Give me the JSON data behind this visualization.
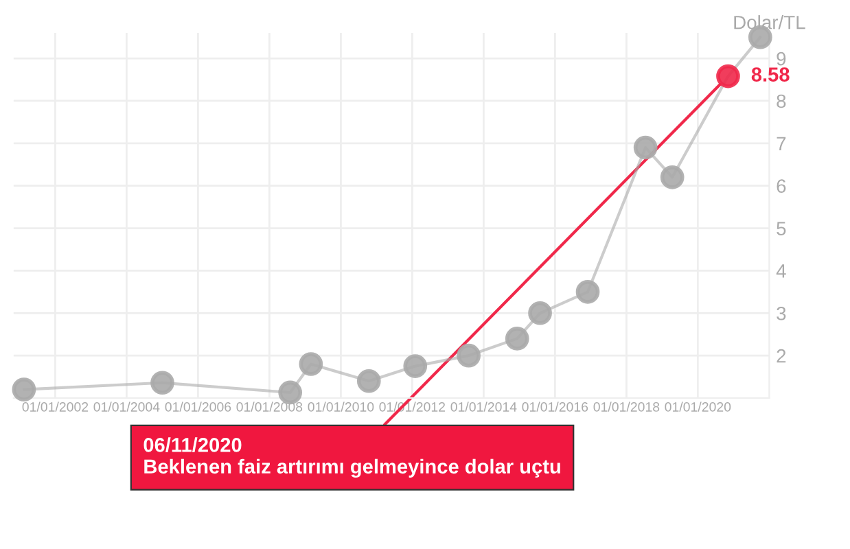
{
  "chart_data": {
    "type": "line",
    "x": [
      "2001-02-15",
      "2005-01-01",
      "2008-08-01",
      "2009-03-01",
      "2010-10-15",
      "2012-02-01",
      "2013-08-01",
      "2014-12-10",
      "2015-08-01",
      "2016-12-01",
      "2018-07-15",
      "2019-04-15",
      "2020-11-06",
      "2021-10-01"
    ],
    "series": [
      {
        "color": "#aaaaaa",
        "colors": [
          "#aaaaaa",
          "#aaaaaa",
          "#aaaaaa",
          "#aaaaaa",
          "#aaaaaa",
          "#aaaaaa",
          "#aaaaaa",
          "#aaaaaa",
          "#aaaaaa",
          "#aaaaaa",
          "#aaaaaa",
          "#aaaaaa",
          "#f0284a",
          "#aaaaaa"
        ],
        "values": [
          1.2,
          1.36,
          1.13,
          1.8,
          1.4,
          1.75,
          2.0,
          2.4,
          3.0,
          3.5,
          6.9,
          6.2,
          8.58,
          9.5
        ],
        "value_labels": [
          null,
          null,
          null,
          null,
          null,
          null,
          null,
          null,
          null,
          null,
          null,
          null,
          "8.58",
          null
        ]
      }
    ],
    "ylabel": "Dolar/TL",
    "xlim": [
      "2000-11-01",
      "2022-01-01"
    ],
    "xticks": [
      {
        "value": "2002-01-01",
        "label": "01/01/2002"
      },
      {
        "value": "2004-01-01",
        "label": "01/01/2004"
      },
      {
        "value": "2006-01-01",
        "label": "01/01/2006"
      },
      {
        "value": "2008-01-01",
        "label": "01/01/2008"
      },
      {
        "value": "2010-01-01",
        "label": "01/01/2010"
      },
      {
        "value": "2012-01-01",
        "label": "01/01/2012"
      },
      {
        "value": "2014-01-01",
        "label": "01/01/2014"
      },
      {
        "value": "2016-01-01",
        "label": "01/01/2016"
      },
      {
        "value": "2018-01-01",
        "label": "01/01/2018"
      },
      {
        "value": "2020-01-01",
        "label": "01/01/2020"
      }
    ],
    "ylim": [
      1,
      9.6
    ],
    "yticks": [
      2,
      3,
      4,
      5,
      6,
      7,
      8,
      9
    ],
    "grid": true,
    "marker": "circle",
    "legend": false,
    "annotations": [
      {
        "text": "06/11/2020\nBeklenen faiz artırımı gelmeyince dolar uçtu",
        "x": "2020-11-06",
        "y": 8.58
      }
    ]
  }
}
